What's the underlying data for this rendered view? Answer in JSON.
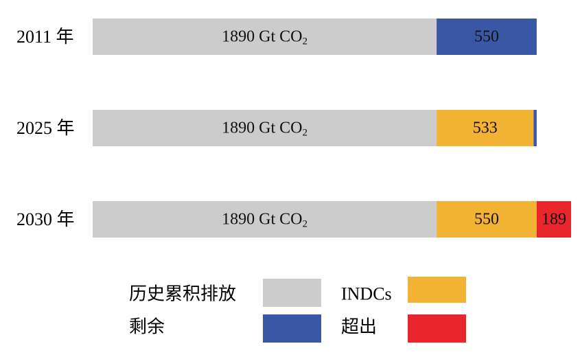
{
  "chart_data": {
    "type": "bar",
    "orientation": "horizontal",
    "stacked": true,
    "categories": [
      "2011 年",
      "2025 年",
      "2030 年"
    ],
    "series": [
      {
        "name": "历史累积排放",
        "values": [
          1890,
          1890,
          1890
        ],
        "color": "#cccccc",
        "labels": [
          "1890 Gt CO₂",
          "1890 Gt CO₂",
          "1890 Gt CO₂"
        ]
      },
      {
        "name": "INDCs",
        "values": [
          0,
          533,
          550
        ],
        "color": "#f2b233",
        "labels": [
          "",
          "533",
          "550"
        ]
      },
      {
        "name": "剩余",
        "values": [
          550,
          17,
          0
        ],
        "color": "#3a57a6",
        "labels": [
          "550",
          "",
          ""
        ]
      },
      {
        "name": "超出",
        "values": [
          0,
          0,
          189
        ],
        "color": "#e8262b",
        "labels": [
          "",
          "",
          "189"
        ]
      }
    ],
    "xlim": [
      0,
      2629
    ],
    "grid": false,
    "legend_position": "bottom"
  }
}
